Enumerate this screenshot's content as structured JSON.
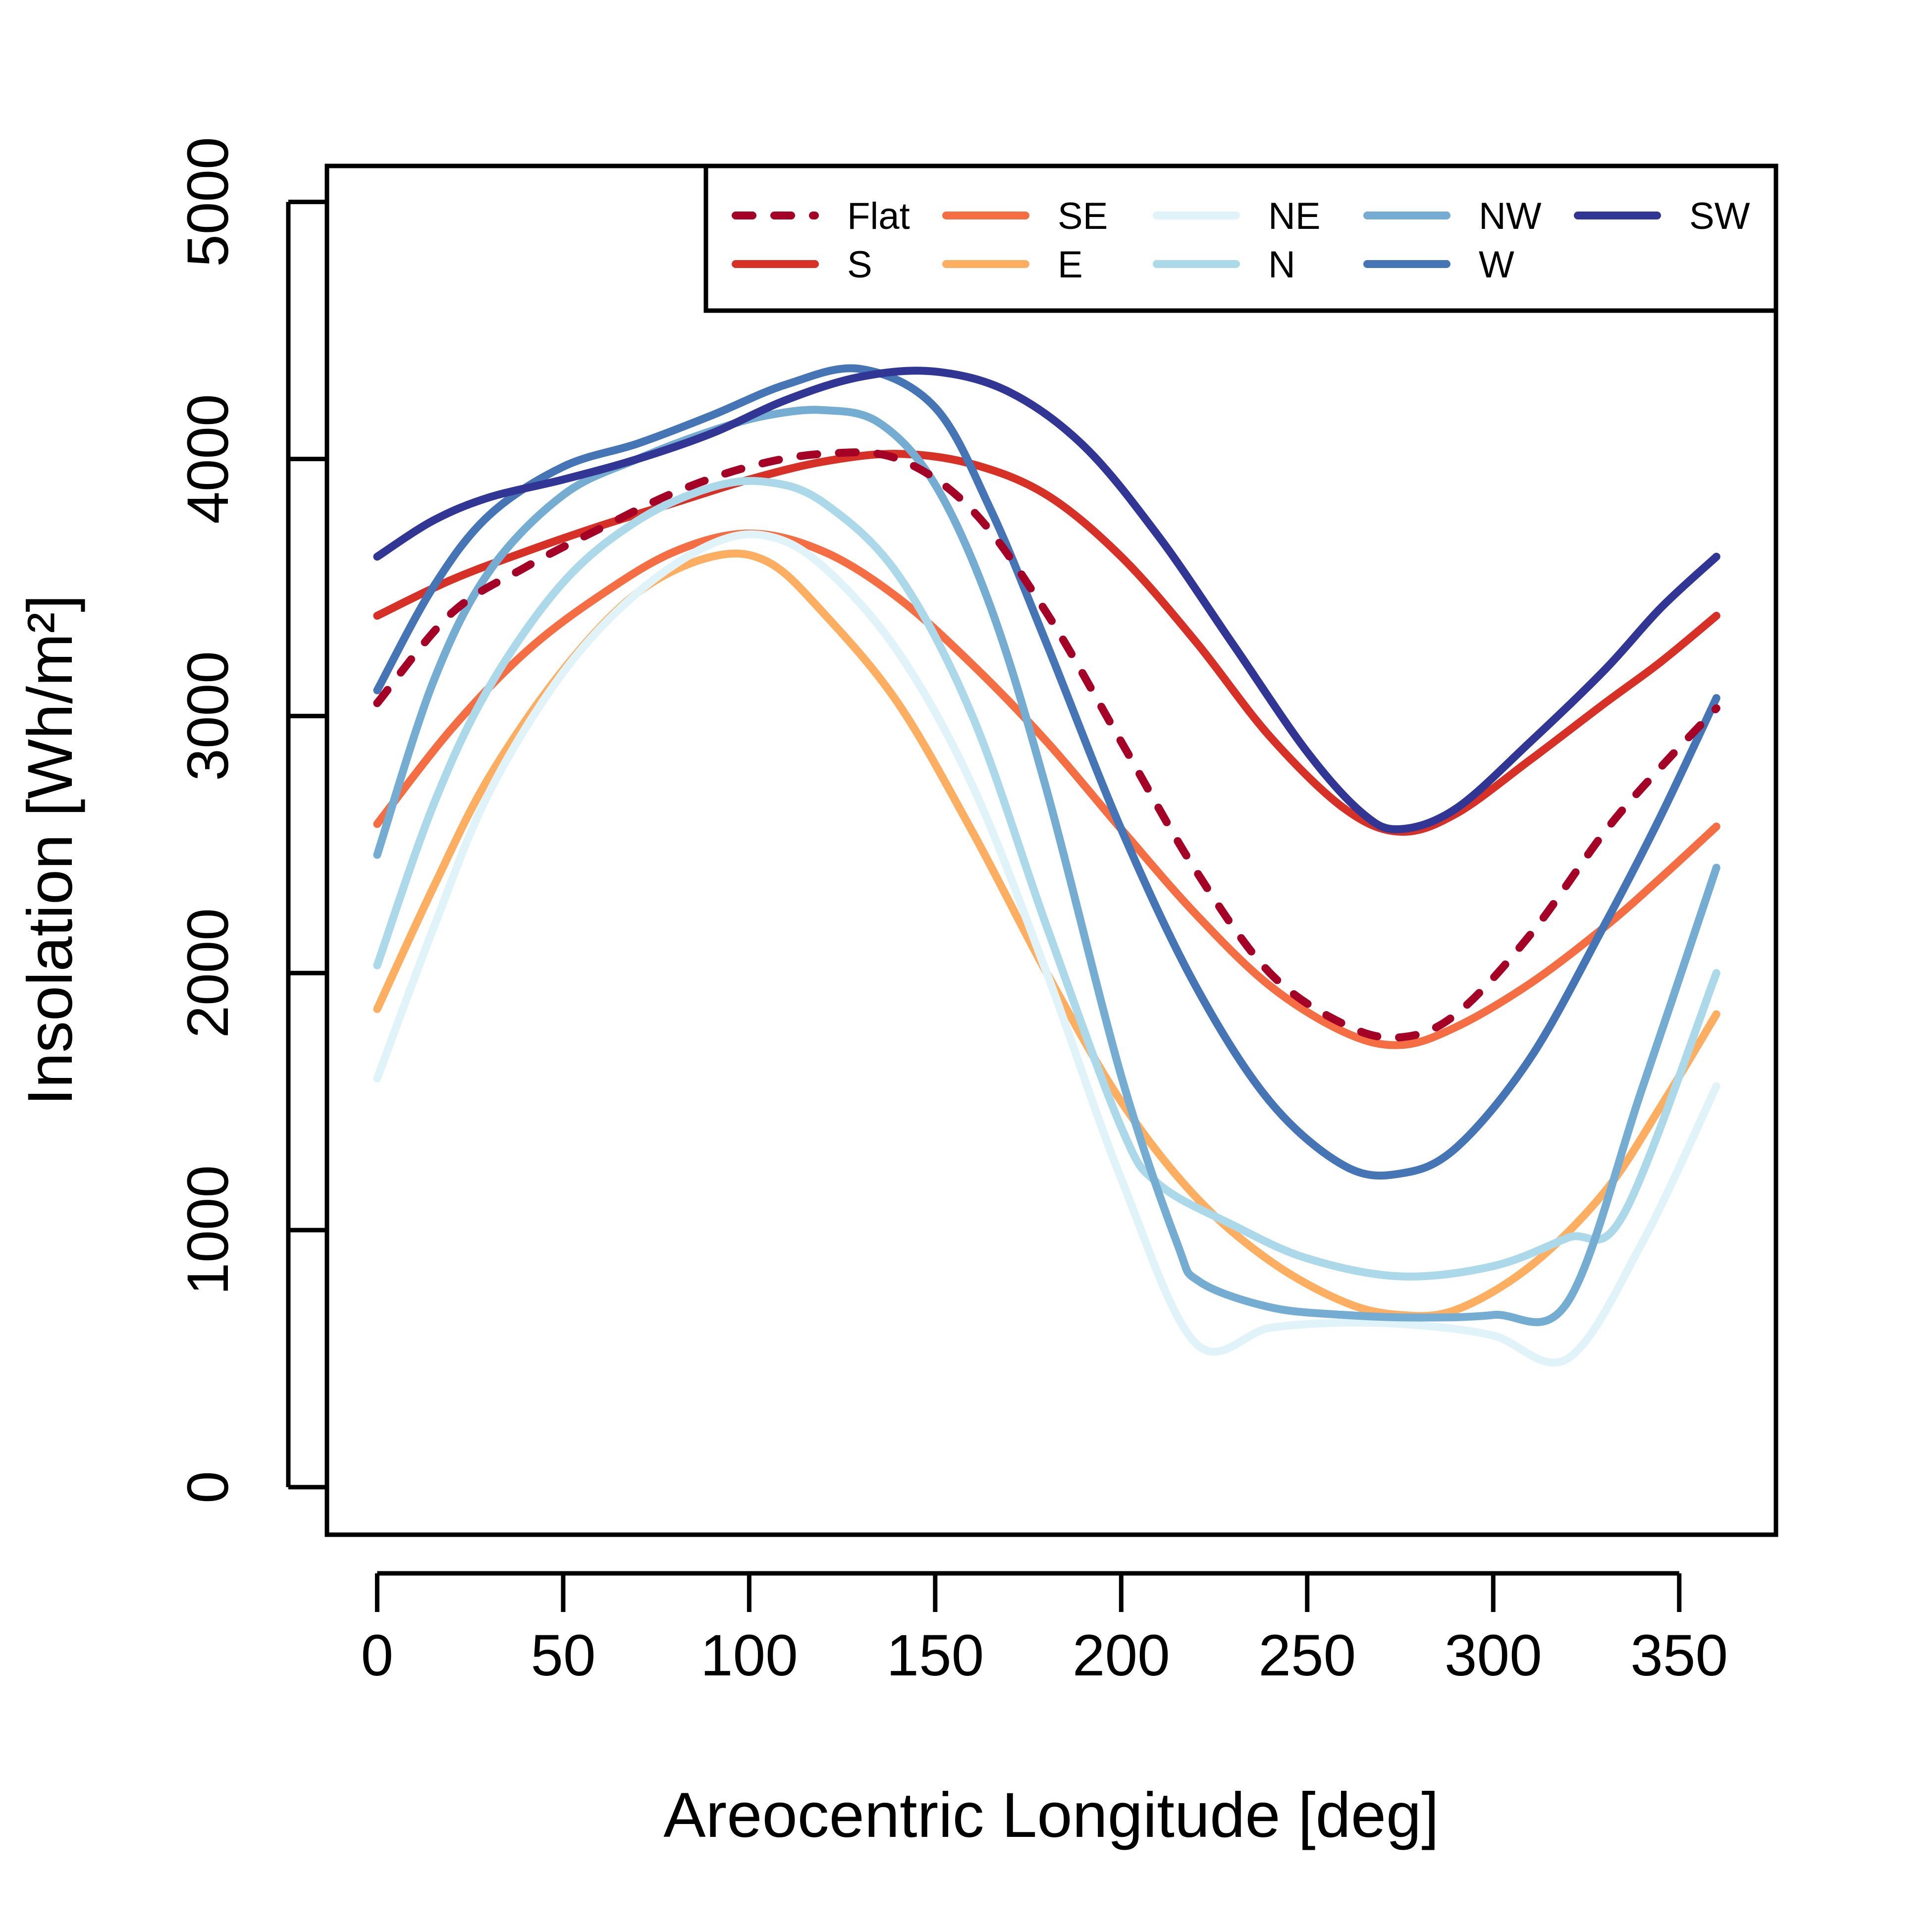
{
  "chart_data": {
    "type": "line",
    "xlabel": "Areocentric Longitude [deg]",
    "ylabel": "Insolation [Wh/m²]",
    "xlim": [
      -13.5,
      376
    ],
    "ylim": [
      -185,
      5140
    ],
    "xticks": [
      0,
      50,
      100,
      150,
      200,
      250,
      300,
      350
    ],
    "yticks": [
      0,
      1000,
      2000,
      3000,
      4000,
      5000
    ],
    "legend_position": "top-right",
    "series": [
      {
        "name": "Flat",
        "color": "#a50026",
        "dashed": true,
        "x": [
          0,
          20,
          40,
          60,
          80,
          100,
          120,
          140,
          160,
          180,
          200,
          220,
          240,
          260,
          275,
          290,
          310,
          330,
          345,
          360
        ],
        "y": [
          3050,
          3400,
          3580,
          3730,
          3870,
          3970,
          4020,
          4000,
          3800,
          3400,
          2900,
          2400,
          2000,
          1800,
          1750,
          1840,
          2150,
          2550,
          2800,
          3030
        ]
      },
      {
        "name": "S",
        "color": "#d73027",
        "x": [
          0,
          20,
          40,
          60,
          80,
          100,
          120,
          140,
          160,
          180,
          200,
          220,
          240,
          260,
          275,
          290,
          310,
          330,
          345,
          360
        ],
        "y": [
          3390,
          3530,
          3640,
          3740,
          3830,
          3920,
          3990,
          4020,
          3980,
          3860,
          3620,
          3290,
          2920,
          2640,
          2550,
          2620,
          2830,
          3050,
          3210,
          3390
        ]
      },
      {
        "name": "SE",
        "color": "#f46d43",
        "x": [
          0,
          20,
          40,
          60,
          80,
          100,
          120,
          140,
          160,
          180,
          200,
          220,
          240,
          260,
          275,
          290,
          310,
          330,
          345,
          360
        ],
        "y": [
          2580,
          2950,
          3250,
          3470,
          3640,
          3710,
          3640,
          3460,
          3200,
          2900,
          2560,
          2230,
          1950,
          1770,
          1720,
          1790,
          1960,
          2180,
          2370,
          2570
        ]
      },
      {
        "name": "E",
        "color": "#fdae61",
        "x": [
          0,
          15,
          30,
          50,
          70,
          90,
          105,
          120,
          140,
          160,
          180,
          200,
          220,
          240,
          260,
          275,
          290,
          310,
          330,
          345,
          360
        ],
        "y": [
          1860,
          2330,
          2760,
          3180,
          3480,
          3620,
          3600,
          3400,
          3050,
          2550,
          2000,
          1500,
          1130,
          880,
          720,
          670,
          690,
          860,
          1150,
          1480,
          1840
        ]
      },
      {
        "name": "NE",
        "color": "#e0f3f8",
        "x": [
          0,
          15,
          30,
          50,
          70,
          90,
          105,
          120,
          140,
          160,
          180,
          200,
          220,
          240,
          260,
          280,
          300,
          320,
          340,
          360
        ],
        "y": [
          1590,
          2170,
          2700,
          3170,
          3480,
          3670,
          3700,
          3580,
          3250,
          2730,
          2000,
          1200,
          560,
          620,
          640,
          630,
          590,
          500,
          950,
          1560
        ]
      },
      {
        "name": "N",
        "color": "#abd9e9",
        "x": [
          0,
          15,
          30,
          50,
          70,
          90,
          105,
          120,
          140,
          160,
          180,
          200,
          210,
          230,
          250,
          275,
          300,
          320,
          335,
          360
        ],
        "y": [
          2030,
          2650,
          3110,
          3520,
          3760,
          3890,
          3910,
          3830,
          3550,
          3000,
          2180,
          1400,
          1180,
          1020,
          890,
          820,
          860,
          970,
          1060,
          2000
        ]
      },
      {
        "name": "NW",
        "color": "#74add1",
        "x": [
          0,
          15,
          30,
          50,
          70,
          90,
          105,
          120,
          135,
          150,
          165,
          180,
          200,
          215,
          221,
          240,
          260,
          280,
          300,
          320,
          340,
          360
        ],
        "y": [
          2460,
          3130,
          3560,
          3860,
          4000,
          4110,
          4170,
          4190,
          4140,
          3900,
          3420,
          2710,
          1600,
          950,
          800,
          700,
          670,
          660,
          670,
          720,
          1550,
          2410
        ]
      },
      {
        "name": "W",
        "color": "#4575b4",
        "x": [
          0,
          15,
          30,
          50,
          70,
          90,
          110,
          130,
          150,
          165,
          180,
          200,
          220,
          240,
          260,
          275,
          290,
          310,
          330,
          345,
          360
        ],
        "y": [
          3100,
          3500,
          3780,
          3970,
          4060,
          4170,
          4290,
          4350,
          4200,
          3800,
          3280,
          2560,
          1950,
          1500,
          1250,
          1220,
          1320,
          1670,
          2190,
          2610,
          3070
        ]
      },
      {
        "name": "SW",
        "color": "#313695",
        "x": [
          0,
          15,
          30,
          50,
          70,
          90,
          110,
          130,
          150,
          170,
          190,
          210,
          230,
          250,
          265,
          275,
          290,
          310,
          330,
          345,
          360
        ],
        "y": [
          3620,
          3760,
          3850,
          3920,
          4000,
          4100,
          4230,
          4320,
          4340,
          4260,
          4050,
          3700,
          3280,
          2860,
          2620,
          2560,
          2640,
          2900,
          3180,
          3420,
          3620
        ]
      }
    ]
  }
}
